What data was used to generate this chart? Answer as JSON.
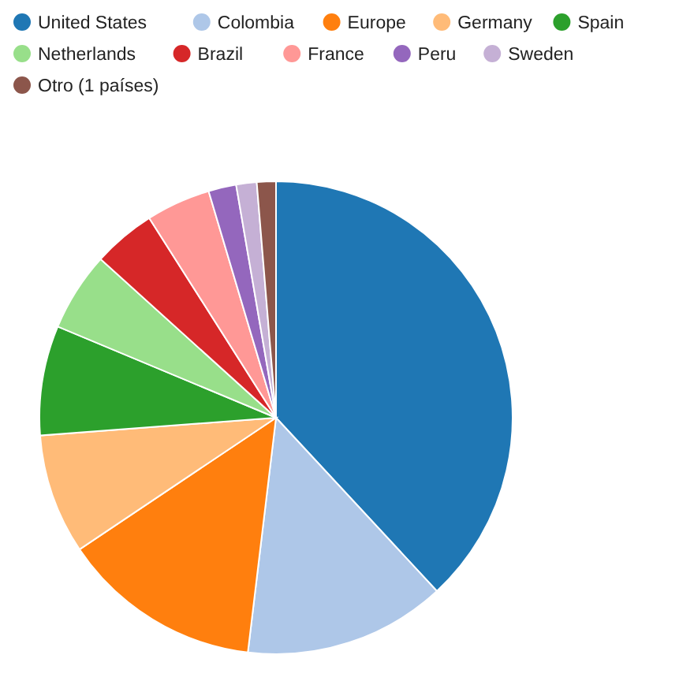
{
  "chart_data": {
    "type": "pie",
    "categories": [
      "United States",
      "Colombia",
      "Europe",
      "Germany",
      "Spain",
      "Netherlands",
      "Brazil",
      "France",
      "Peru",
      "Sweden",
      "Otro (1 países)"
    ],
    "values": [
      38.1,
      13.8,
      13.7,
      8.2,
      7.5,
      5.4,
      4.3,
      4.4,
      1.9,
      1.4,
      1.3
    ],
    "colors": [
      "#1f77b4",
      "#aec7e8",
      "#ff7f0e",
      "#ffbb78",
      "#2ca02c",
      "#98df8a",
      "#d62728",
      "#ff9896",
      "#9467bd",
      "#c5b0d5",
      "#8c564b"
    ],
    "legend": "top"
  }
}
